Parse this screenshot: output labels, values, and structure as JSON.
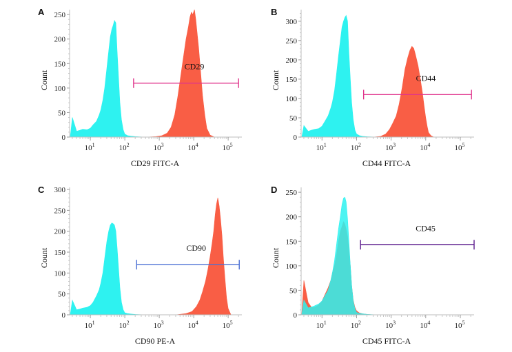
{
  "chart_data": [
    {
      "type": "area",
      "panel_label": "A",
      "xlabel": "CD29 FITC-A",
      "ylabel": "Count",
      "x_scale": "log",
      "xlim": [
        2.5,
        250000
      ],
      "ylim": [
        0,
        260
      ],
      "yticks": [
        0,
        50,
        100,
        150,
        200,
        250
      ],
      "xticks": [
        {
          "value": 10,
          "base": "10",
          "exp": "1"
        },
        {
          "value": 100,
          "base": "10",
          "exp": "2"
        },
        {
          "value": 1000,
          "base": "10",
          "exp": "3"
        },
        {
          "value": 10000,
          "base": "10",
          "exp": "4"
        },
        {
          "value": 100000,
          "base": "10",
          "exp": "5"
        }
      ],
      "series": [
        {
          "color": "#2ef2f0",
          "x": [
            2.6,
            3,
            4,
            5,
            6,
            8,
            10,
            12,
            15,
            18,
            20,
            23,
            26,
            30,
            34,
            38,
            42,
            46,
            50,
            55,
            60,
            66,
            72,
            80,
            90,
            100,
            120,
            150,
            200,
            400
          ],
          "y": [
            0,
            40,
            12,
            14,
            16,
            15,
            18,
            25,
            32,
            45,
            55,
            75,
            100,
            140,
            175,
            205,
            220,
            228,
            238,
            233,
            175,
            120,
            70,
            35,
            15,
            6,
            3,
            2,
            1,
            0
          ]
        },
        {
          "color": "#f95e45",
          "x": [
            400,
            800,
            1200,
            1700,
            2200,
            2800,
            3500,
            4300,
            5200,
            6000,
            7000,
            7800,
            8600,
            9400,
            10500,
            11500,
            12500,
            14000,
            16000,
            18000,
            21000,
            24000,
            30000,
            40000
          ],
          "y": [
            0,
            1,
            3,
            8,
            20,
            45,
            85,
            130,
            170,
            200,
            225,
            245,
            255,
            250,
            260,
            240,
            215,
            180,
            130,
            85,
            45,
            18,
            4,
            0
          ]
        }
      ],
      "gate": {
        "label": "CD29",
        "x_start": 180,
        "x_end": 200000,
        "y": 110,
        "color": "#e0348c"
      }
    },
    {
      "type": "area",
      "panel_label": "B",
      "xlabel": "CD44 FITC-A",
      "ylabel": "Count",
      "x_scale": "log",
      "xlim": [
        2.5,
        250000
      ],
      "ylim": [
        0,
        330
      ],
      "yticks": [
        0,
        50,
        100,
        150,
        200,
        250,
        300
      ],
      "xticks": [
        {
          "value": 10,
          "base": "10",
          "exp": "1"
        },
        {
          "value": 100,
          "base": "10",
          "exp": "2"
        },
        {
          "value": 1000,
          "base": "10",
          "exp": "3"
        },
        {
          "value": 10000,
          "base": "10",
          "exp": "4"
        },
        {
          "value": 100000,
          "base": "10",
          "exp": "5"
        }
      ],
      "series": [
        {
          "color": "#2ef2f0",
          "x": [
            2.6,
            3,
            4,
            5,
            6,
            8,
            10,
            12,
            15,
            18,
            20,
            23,
            26,
            30,
            34,
            38,
            42,
            46,
            50,
            55,
            60,
            66,
            72,
            80,
            90,
            100,
            120,
            150,
            200,
            400
          ],
          "y": [
            0,
            30,
            15,
            18,
            20,
            22,
            28,
            40,
            55,
            75,
            90,
            120,
            160,
            210,
            250,
            285,
            300,
            310,
            315,
            300,
            220,
            150,
            90,
            45,
            18,
            8,
            4,
            2,
            1,
            0
          ]
        },
        {
          "color": "#f95e45",
          "x": [
            300,
            500,
            700,
            900,
            1100,
            1400,
            1700,
            2100,
            2500,
            3000,
            3500,
            4000,
            4500,
            5000,
            6000,
            7000,
            8000,
            9000,
            10000,
            11000,
            12000,
            14000,
            17000
          ],
          "y": [
            0,
            2,
            8,
            20,
            35,
            55,
            85,
            130,
            175,
            205,
            225,
            235,
            230,
            215,
            185,
            150,
            115,
            80,
            50,
            28,
            12,
            4,
            0
          ]
        }
      ],
      "gate": {
        "label": "CD44",
        "x_start": 160,
        "x_end": 210000,
        "y": 110,
        "color": "#e0348c"
      }
    },
    {
      "type": "area",
      "panel_label": "C",
      "xlabel": "CD90 PE-A",
      "ylabel": "Count",
      "x_scale": "log",
      "xlim": [
        2.5,
        250000
      ],
      "ylim": [
        0,
        305
      ],
      "yticks": [
        0,
        50,
        100,
        150,
        200,
        250,
        300
      ],
      "xticks": [
        {
          "value": 10,
          "base": "10",
          "exp": "1"
        },
        {
          "value": 100,
          "base": "10",
          "exp": "2"
        },
        {
          "value": 1000,
          "base": "10",
          "exp": "3"
        },
        {
          "value": 10000,
          "base": "10",
          "exp": "4"
        },
        {
          "value": 100000,
          "base": "10",
          "exp": "5"
        }
      ],
      "series": [
        {
          "color": "#2ef2f0",
          "x": [
            2.6,
            3,
            4,
            5,
            6,
            8,
            10,
            12,
            15,
            18,
            20,
            23,
            26,
            30,
            34,
            38,
            42,
            46,
            50,
            55,
            60,
            66,
            72,
            80,
            90,
            100,
            120,
            150,
            200,
            400
          ],
          "y": [
            0,
            35,
            12,
            14,
            16,
            18,
            22,
            30,
            45,
            60,
            75,
            100,
            135,
            175,
            200,
            215,
            220,
            218,
            215,
            200,
            160,
            110,
            65,
            30,
            12,
            5,
            3,
            2,
            1,
            0
          ]
        },
        {
          "color": "#f95e45",
          "x": [
            3000,
            6000,
            9000,
            12000,
            15000,
            18000,
            22000,
            26000,
            30000,
            34000,
            38000,
            42000,
            46000,
            50000,
            55000,
            60000,
            66000,
            72000,
            80000,
            90000,
            100000,
            120000
          ],
          "y": [
            0,
            3,
            8,
            20,
            35,
            55,
            80,
            110,
            140,
            170,
            200,
            240,
            265,
            280,
            260,
            230,
            190,
            140,
            90,
            40,
            15,
            0
          ]
        }
      ],
      "gate": {
        "label": "CD90",
        "x_start": 220,
        "x_end": 210000,
        "y": 120,
        "color": "#4a6fd4"
      }
    },
    {
      "type": "area",
      "panel_label": "D",
      "xlabel": "CD45 FITC-A",
      "ylabel": "Count",
      "x_scale": "log",
      "xlim": [
        2.5,
        250000
      ],
      "ylim": [
        0,
        260
      ],
      "yticks": [
        0,
        50,
        100,
        150,
        200,
        250
      ],
      "xticks": [
        {
          "value": 10,
          "base": "10",
          "exp": "1"
        },
        {
          "value": 100,
          "base": "10",
          "exp": "2"
        },
        {
          "value": 1000,
          "base": "10",
          "exp": "3"
        },
        {
          "value": 10000,
          "base": "10",
          "exp": "4"
        },
        {
          "value": 100000,
          "base": "10",
          "exp": "5"
        }
      ],
      "series": [
        {
          "color": "#f95e45",
          "x": [
            2.6,
            3,
            4,
            5,
            6,
            8,
            10,
            12,
            15,
            18,
            20,
            23,
            26,
            30,
            34,
            38,
            42,
            46,
            50,
            55,
            60,
            66,
            72,
            80,
            90,
            100,
            120,
            150,
            200,
            300
          ],
          "y": [
            0,
            70,
            25,
            15,
            15,
            20,
            28,
            40,
            55,
            70,
            85,
            100,
            120,
            150,
            170,
            180,
            190,
            185,
            175,
            160,
            135,
            100,
            60,
            30,
            15,
            8,
            4,
            2,
            1,
            0
          ]
        },
        {
          "color": "#2ef2f0",
          "x": [
            2.6,
            3,
            4,
            5,
            6,
            8,
            10,
            12,
            15,
            18,
            20,
            23,
            26,
            30,
            34,
            38,
            42,
            46,
            50,
            55,
            60,
            66,
            72,
            80,
            90,
            100,
            120,
            150,
            200,
            400
          ],
          "y": [
            0,
            30,
            14,
            16,
            18,
            22,
            28,
            38,
            50,
            70,
            85,
            110,
            140,
            175,
            200,
            225,
            238,
            240,
            230,
            195,
            150,
            100,
            60,
            28,
            12,
            5,
            3,
            2,
            1,
            0
          ],
          "opacity": 0.85
        }
      ],
      "gate": {
        "label": "CD45",
        "x_start": 130,
        "x_end": 250000,
        "y": 143,
        "color": "#5a1a8c"
      }
    }
  ]
}
